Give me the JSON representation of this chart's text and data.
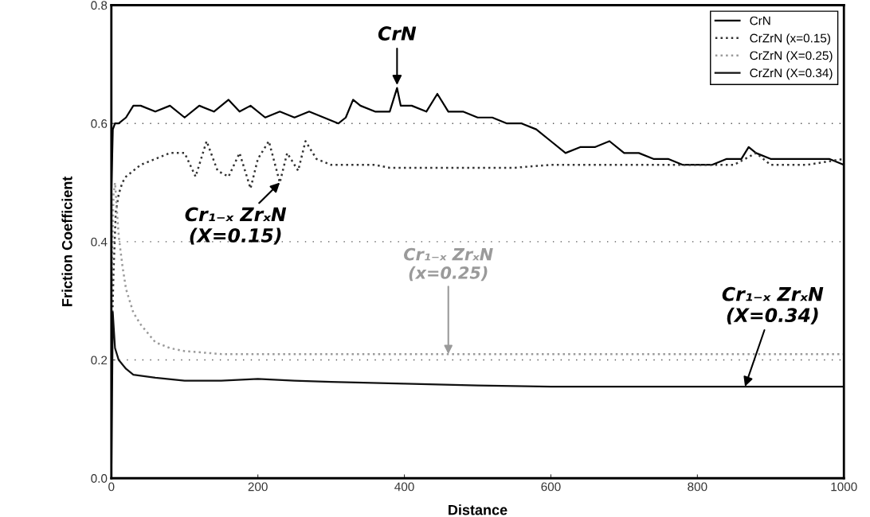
{
  "chart_data": {
    "type": "line",
    "xlabel": "Distance",
    "ylabel": "Friction Coefficient",
    "xlim": [
      0,
      1000
    ],
    "ylim": [
      0.0,
      0.8
    ],
    "xticks": [
      0,
      200,
      400,
      600,
      800,
      1000
    ],
    "yticks": [
      {
        "value": 0.0,
        "label": "0.0"
      },
      {
        "value": 0.2,
        "label": "0.2"
      },
      {
        "value": 0.4,
        "label": "0.4"
      },
      {
        "value": 0.6,
        "label": "0.6"
      },
      {
        "value": 0.8,
        "label": "0.8"
      }
    ],
    "grid": "y",
    "legend": "top right",
    "series": [
      {
        "name": "CrN",
        "color": "#000000",
        "line_style": "solid",
        "x": [
          0,
          2,
          5,
          10,
          20,
          30,
          40,
          60,
          80,
          100,
          120,
          140,
          160,
          175,
          190,
          210,
          230,
          250,
          270,
          290,
          310,
          320,
          330,
          340,
          360,
          380,
          390,
          395,
          410,
          430,
          445,
          460,
          480,
          500,
          520,
          540,
          560,
          580,
          600,
          620,
          640,
          660,
          680,
          700,
          720,
          740,
          760,
          780,
          800,
          820,
          840,
          860,
          870,
          880,
          900,
          920,
          940,
          960,
          980,
          1000,
          1000
        ],
        "values": [
          0.48,
          0.59,
          0.6,
          0.6,
          0.61,
          0.63,
          0.63,
          0.62,
          0.63,
          0.61,
          0.63,
          0.62,
          0.64,
          0.62,
          0.63,
          0.61,
          0.62,
          0.61,
          0.62,
          0.61,
          0.6,
          0.61,
          0.64,
          0.63,
          0.62,
          0.62,
          0.66,
          0.63,
          0.63,
          0.62,
          0.65,
          0.62,
          0.62,
          0.61,
          0.61,
          0.6,
          0.6,
          0.59,
          0.57,
          0.55,
          0.56,
          0.56,
          0.57,
          0.55,
          0.55,
          0.54,
          0.54,
          0.53,
          0.53,
          0.53,
          0.54,
          0.54,
          0.56,
          0.55,
          0.54,
          0.54,
          0.54,
          0.54,
          0.54,
          0.53,
          0.2
        ]
      },
      {
        "name": "CrZrN (x=0.15)",
        "color": "#333333",
        "line_style": "dotted",
        "x": [
          0,
          3,
          6,
          10,
          15,
          20,
          30,
          40,
          60,
          80,
          100,
          115,
          130,
          145,
          160,
          175,
          190,
          200,
          215,
          230,
          240,
          255,
          265,
          280,
          300,
          320,
          340,
          360,
          380,
          400,
          450,
          500,
          550,
          600,
          650,
          700,
          750,
          800,
          850,
          880,
          900,
          950,
          1000
        ],
        "values": [
          0.2,
          0.35,
          0.45,
          0.48,
          0.5,
          0.51,
          0.52,
          0.53,
          0.54,
          0.55,
          0.55,
          0.51,
          0.57,
          0.52,
          0.51,
          0.55,
          0.49,
          0.54,
          0.57,
          0.5,
          0.55,
          0.52,
          0.57,
          0.54,
          0.53,
          0.53,
          0.53,
          0.53,
          0.525,
          0.525,
          0.525,
          0.525,
          0.525,
          0.53,
          0.53,
          0.53,
          0.53,
          0.53,
          0.53,
          0.55,
          0.53,
          0.53,
          0.54
        ]
      },
      {
        "name": "CrZrN (X=0.25)",
        "color": "#9a9a9a",
        "line_style": "dotted",
        "x": [
          0,
          3,
          5,
          10,
          15,
          20,
          30,
          40,
          60,
          80,
          100,
          150,
          200,
          300,
          400,
          500,
          600,
          700,
          800,
          900,
          1000
        ],
        "values": [
          0.3,
          0.48,
          0.5,
          0.41,
          0.36,
          0.32,
          0.28,
          0.26,
          0.23,
          0.22,
          0.215,
          0.21,
          0.21,
          0.21,
          0.21,
          0.21,
          0.21,
          0.21,
          0.21,
          0.21,
          0.21
        ]
      },
      {
        "name": "CrZrN (X=0.34)",
        "color": "#111111",
        "line_style": "solid",
        "x": [
          0,
          2,
          5,
          10,
          20,
          30,
          60,
          100,
          150,
          200,
          250,
          300,
          400,
          500,
          600,
          700,
          800,
          900,
          1000
        ],
        "values": [
          0.0,
          0.28,
          0.22,
          0.2,
          0.185,
          0.175,
          0.17,
          0.165,
          0.165,
          0.168,
          0.165,
          0.163,
          0.16,
          0.157,
          0.155,
          0.155,
          0.155,
          0.155,
          0.155
        ]
      }
    ],
    "annotations": [
      {
        "text": "CrN",
        "x": 390,
        "y": 0.65
      },
      {
        "text": "Cr₁₋ₓ ZrₓN\n(X=0.15)",
        "x": 230,
        "y": 0.5
      },
      {
        "text": "Cr₁₋ₓ ZrₓN\n(x=0.25)",
        "x": 460,
        "y": 0.21
      },
      {
        "text": "Cr₁₋ₓ ZrₓN\n(X=0.34)",
        "x": 865,
        "y": 0.155
      }
    ]
  }
}
